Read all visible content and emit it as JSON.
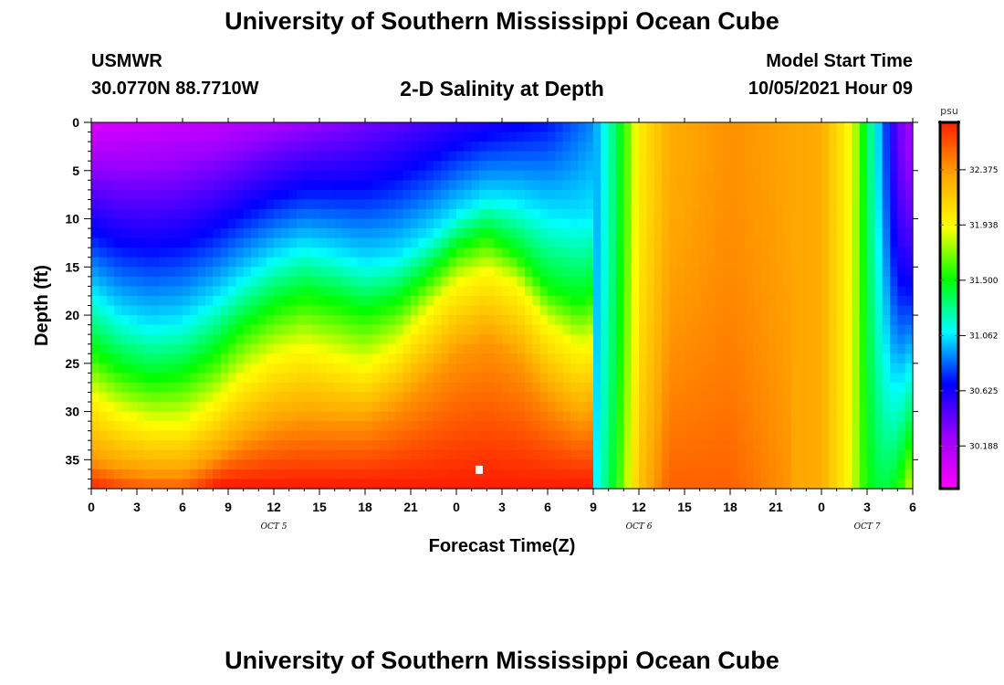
{
  "header": {
    "title": "University of Southern Mississippi Ocean Cube",
    "station": "USMWR",
    "coordinates": "30.0770N  88.7710W",
    "subtitle": "2-D Salinity at Depth",
    "model_start_label": "Model Start Time",
    "model_start_value": "10/05/2021 Hour 09"
  },
  "footer": {
    "title": "University of Southern Mississippi Ocean Cube"
  },
  "chart_data": {
    "type": "heatmap",
    "title": "2-D Salinity at Depth",
    "xlabel": "Forecast Time(Z)",
    "ylabel": "Depth (ft)",
    "x_range_hours": [
      0,
      54
    ],
    "y_range_ft": [
      0,
      38
    ],
    "y_inverted": true,
    "x_tick_labels": [
      "0",
      "3",
      "6",
      "9",
      "12",
      "15",
      "18",
      "21",
      "0",
      "3",
      "6",
      "9",
      "12",
      "15",
      "18",
      "21",
      "0",
      "3",
      "6"
    ],
    "date_labels": [
      {
        "text": "OCT 5",
        "hour": 12
      },
      {
        "text": "OCT 6",
        "hour": 36
      },
      {
        "text": "OCT 7",
        "hour": 51
      }
    ],
    "y_ticks": [
      0,
      5,
      10,
      15,
      20,
      25,
      30,
      35
    ],
    "colorbar": {
      "unit": "psu",
      "min": 29.85,
      "max": 32.75,
      "tick_values": [
        30.188,
        30.625,
        31.062,
        31.5,
        31.938,
        32.375
      ],
      "tick_labels": [
        "30.188",
        "30.625",
        "31.062",
        "31.500",
        "31.938",
        "32.375"
      ],
      "colors": [
        "#ff00ff",
        "#9a00ff",
        "#0000ff",
        "#00ffff",
        "#00ff00",
        "#ffff00",
        "#ffa500",
        "#ff2000"
      ]
    },
    "field_description": "salinity (psu) vs forecast hour and depth",
    "surface_salinity_by_hour": [
      [
        0,
        30.0
      ],
      [
        8,
        30.1
      ],
      [
        16,
        30.3
      ],
      [
        24,
        30.55
      ],
      [
        30,
        30.7
      ],
      [
        33,
        30.9
      ],
      [
        34,
        31.2
      ],
      [
        35,
        31.55
      ],
      [
        36,
        32.0
      ],
      [
        38,
        32.3
      ],
      [
        42,
        32.4
      ],
      [
        48,
        32.3
      ],
      [
        50,
        31.9
      ],
      [
        51,
        31.4
      ],
      [
        52,
        30.9
      ],
      [
        53,
        30.4
      ],
      [
        54,
        30.2
      ]
    ],
    "isolines": {
      "31.062": [
        [
          0,
          17.5
        ],
        [
          2,
          20.0
        ],
        [
          4,
          21.0
        ],
        [
          6,
          20.5
        ],
        [
          8,
          18.5
        ],
        [
          10,
          16.0
        ],
        [
          12,
          14.0
        ],
        [
          14,
          12.8
        ],
        [
          16,
          13.5
        ],
        [
          18,
          14.5
        ],
        [
          20,
          14.0
        ],
        [
          22,
          12.0
        ],
        [
          24,
          9.5
        ],
        [
          26,
          7.8
        ],
        [
          28,
          8.2
        ],
        [
          30,
          9.5
        ],
        [
          32,
          10.2
        ],
        [
          33,
          9.5
        ]
      ],
      "31.500": [
        [
          0,
          23.5
        ],
        [
          2,
          25.5
        ],
        [
          4,
          26.5
        ],
        [
          6,
          26.0
        ],
        [
          8,
          24.0
        ],
        [
          10,
          21.0
        ],
        [
          12,
          19.0
        ],
        [
          14,
          17.8
        ],
        [
          16,
          18.5
        ],
        [
          18,
          19.5
        ],
        [
          20,
          18.5
        ],
        [
          22,
          16.0
        ],
        [
          24,
          13.0
        ],
        [
          26,
          11.5
        ],
        [
          28,
          13.5
        ],
        [
          30,
          17.0
        ],
        [
          32,
          18.5
        ],
        [
          33,
          17.5
        ]
      ],
      "31.938": [
        [
          0,
          28.5
        ],
        [
          2,
          30.5
        ],
        [
          4,
          31.5
        ],
        [
          6,
          31.5
        ],
        [
          8,
          29.5
        ],
        [
          10,
          26.5
        ],
        [
          12,
          24.5
        ],
        [
          14,
          23.5
        ],
        [
          16,
          24.5
        ],
        [
          18,
          25.5
        ],
        [
          20,
          23.5
        ],
        [
          22,
          20.0
        ],
        [
          24,
          16.8
        ],
        [
          26,
          15.5
        ],
        [
          28,
          17.0
        ],
        [
          30,
          21.0
        ],
        [
          32,
          23.5
        ],
        [
          33,
          23.0
        ]
      ],
      "32.375": [
        [
          0,
          35.0
        ],
        [
          2,
          36.0
        ],
        [
          4,
          36.5
        ],
        [
          6,
          36.5
        ],
        [
          8,
          35.0
        ],
        [
          10,
          33.0
        ],
        [
          12,
          31.5
        ],
        [
          14,
          30.8
        ],
        [
          16,
          31.0
        ],
        [
          18,
          31.0
        ],
        [
          20,
          29.5
        ],
        [
          22,
          27.0
        ],
        [
          24,
          24.0
        ],
        [
          26,
          22.5
        ],
        [
          28,
          24.5
        ],
        [
          30,
          28.5
        ],
        [
          32,
          31.0
        ],
        [
          33,
          30.5
        ]
      ]
    },
    "max_marker": {
      "hour": 25.5,
      "depth_ft": 36
    }
  }
}
